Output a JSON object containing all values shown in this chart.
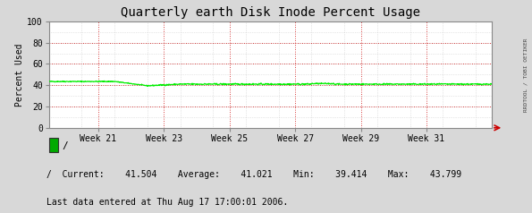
{
  "title": "Quarterly earth Disk Inode Percent Usage",
  "ylabel": "Percent Used",
  "right_label": "RRDTOOL / TOBI OETIKER",
  "bg_color": "#d8d8d8",
  "plot_bg_color": "#ffffff",
  "grid_major_color": "#cc0000",
  "grid_minor_color": "#bbbbbb",
  "line_color": "#00ee00",
  "arrow_color": "#cc0000",
  "spine_color": "#888888",
  "ylim": [
    0,
    100
  ],
  "yticks": [
    0,
    20,
    40,
    60,
    80,
    100
  ],
  "x_week_labels": [
    "Week 21",
    "Week 23",
    "Week 25",
    "Week 27",
    "Week 29",
    "Week 31"
  ],
  "major_weeks": [
    21,
    23,
    25,
    27,
    29,
    31
  ],
  "week_start": 19.5,
  "week_end": 33.0,
  "legend_color": "#00aa00",
  "legend_label": "/",
  "stats_line": "/  Current:    41.504    Average:    41.021    Min:    39.414    Max:    43.799",
  "footer_line": "Last data entered at Thu Aug 17 17:00:01 2006.",
  "font_family": "monospace",
  "title_fontsize": 10,
  "tick_fontsize": 7,
  "label_fontsize": 7,
  "legend_fontsize": 8,
  "stats_fontsize": 7,
  "footer_fontsize": 7
}
